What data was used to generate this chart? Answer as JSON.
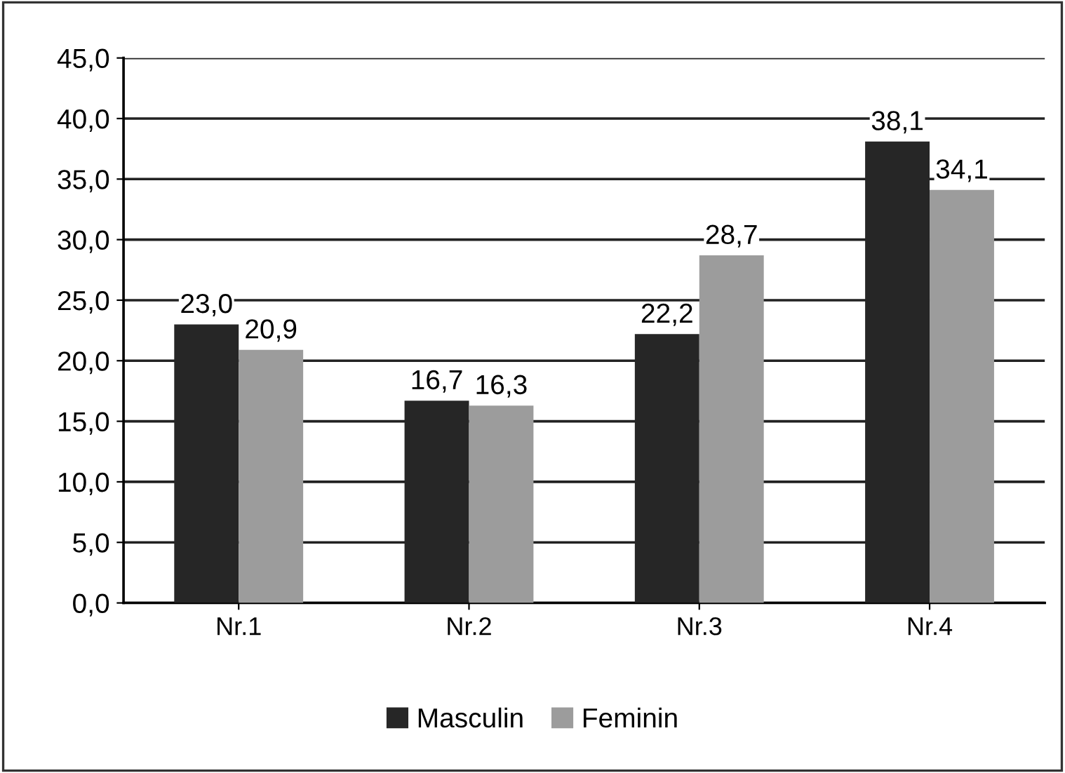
{
  "chart_data": {
    "type": "bar",
    "categories": [
      "Nr.1",
      "Nr.2",
      "Nr.3",
      "Nr.4"
    ],
    "series": [
      {
        "name": "Masculin",
        "color": "#262626",
        "values": [
          23.0,
          16.7,
          22.2,
          38.1
        ],
        "value_labels": [
          "23,0",
          "16,7",
          "22,2",
          "38,1"
        ]
      },
      {
        "name": "Feminin",
        "color": "#9c9c9c",
        "values": [
          20.9,
          16.3,
          28.7,
          34.1
        ],
        "value_labels": [
          "20,9",
          "16,3",
          "28,7",
          "34,1"
        ]
      }
    ],
    "ylim": [
      0,
      45
    ],
    "yticks": [
      {
        "value": 0,
        "label": "0,0"
      },
      {
        "value": 5,
        "label": "5,0"
      },
      {
        "value": 10,
        "label": "10,0"
      },
      {
        "value": 15,
        "label": "15,0"
      },
      {
        "value": 20,
        "label": "20,0"
      },
      {
        "value": 25,
        "label": "25,0"
      },
      {
        "value": 30,
        "label": "30,0"
      },
      {
        "value": 35,
        "label": "35,0"
      },
      {
        "value": 40,
        "label": "40,0"
      },
      {
        "value": 45,
        "label": "45,0"
      }
    ],
    "grid": "y",
    "legend": "bottom"
  }
}
